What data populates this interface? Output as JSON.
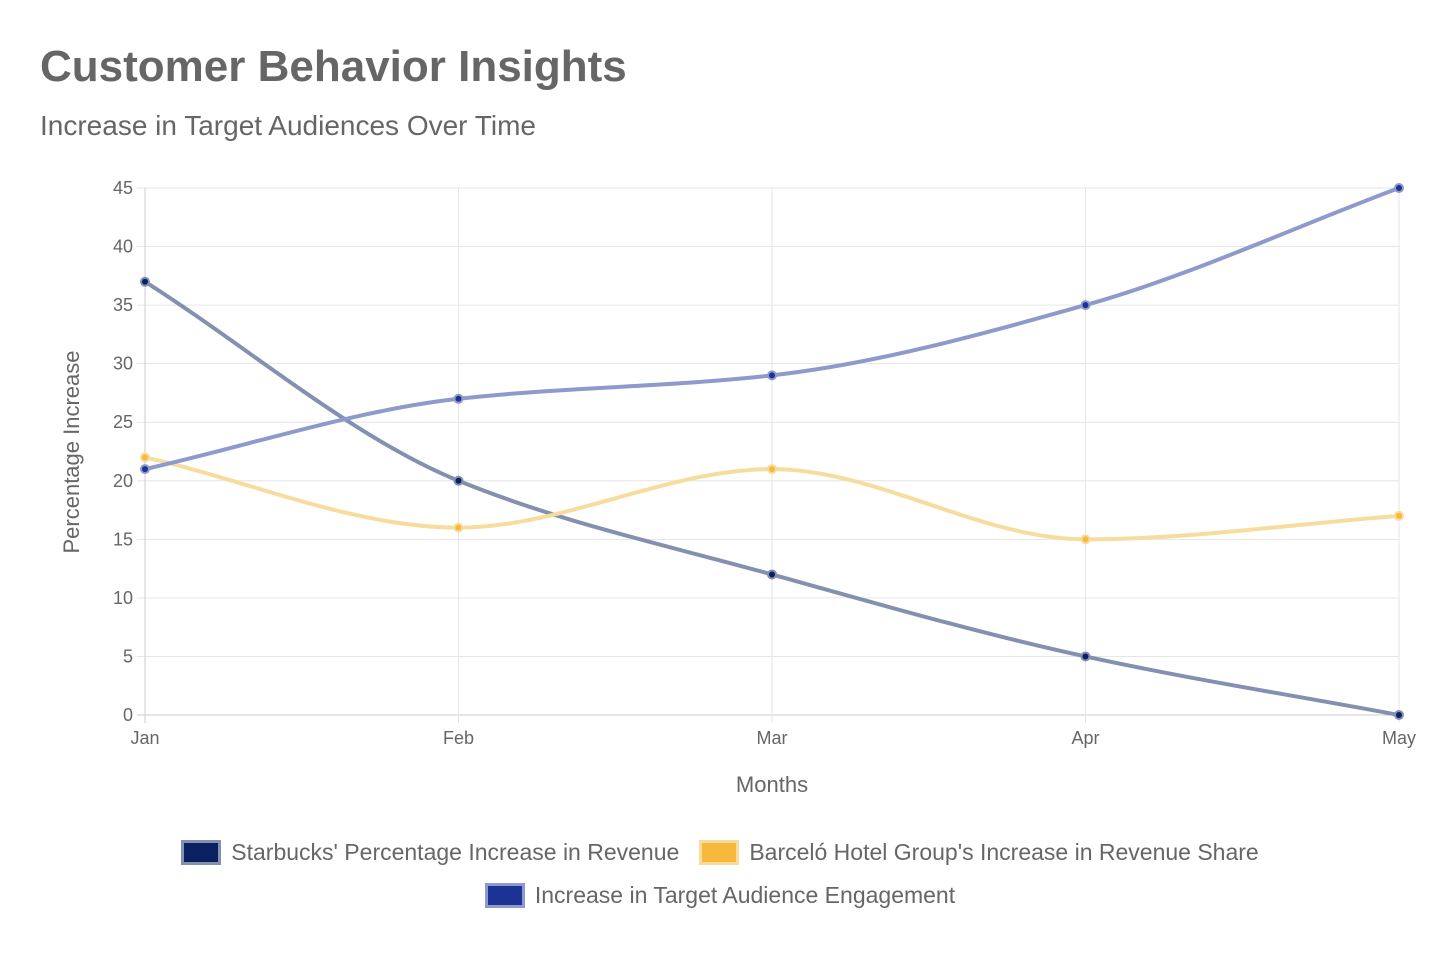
{
  "chart_data": {
    "type": "line",
    "title": "Customer Behavior Insights",
    "subtitle": "Increase in Target Audiences Over Time",
    "xlabel": "Months",
    "ylabel": "Percentage Increase",
    "categories": [
      "Jan",
      "Feb",
      "Mar",
      "Apr",
      "May"
    ],
    "ylim": [
      0,
      45
    ],
    "yticks": [
      0,
      5,
      10,
      15,
      20,
      25,
      30,
      35,
      40,
      45
    ],
    "grid": true,
    "legend_position": "bottom",
    "series": [
      {
        "name": "Starbucks' Percentage Increase in Revenue",
        "values": [
          37,
          20,
          12,
          5,
          0
        ],
        "color": "#0a2060",
        "line_color": "#8490b0"
      },
      {
        "name": "Barceló Hotel Group's Increase in Revenue Share",
        "values": [
          22,
          16,
          21,
          15,
          17
        ],
        "color": "#f7b93c",
        "line_color": "#f7dc9e"
      },
      {
        "name": "Increase in Target Audience Engagement",
        "values": [
          21,
          27,
          29,
          35,
          45
        ],
        "color": "#1c3396",
        "line_color": "#8d9acb"
      }
    ]
  }
}
